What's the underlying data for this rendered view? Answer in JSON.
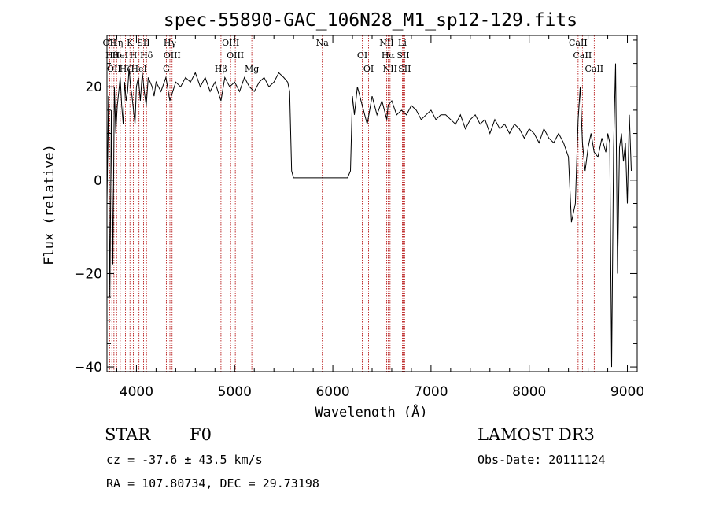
{
  "chart_data": {
    "type": "line",
    "title": "spec-55890-GAC_106N28_M1_sp12-129.fits",
    "xlabel": "Wavelength (Å)",
    "ylabel": "Flux (relative)",
    "xlim": [
      3700,
      9100
    ],
    "ylim": [
      -41,
      31
    ],
    "xticks": [
      4000,
      5000,
      6000,
      7000,
      8000,
      9000
    ],
    "yticks": [
      -40,
      -20,
      0,
      20
    ],
    "x": [
      3700,
      3715,
      3730,
      3745,
      3760,
      3775,
      3790,
      3805,
      3820,
      3835,
      3850,
      3865,
      3880,
      3895,
      3910,
      3925,
      3940,
      3955,
      3970,
      3985,
      4000,
      4020,
      4040,
      4060,
      4080,
      4100,
      4120,
      4140,
      4160,
      4180,
      4200,
      4250,
      4300,
      4340,
      4400,
      4450,
      4500,
      4550,
      4600,
      4650,
      4700,
      4750,
      4800,
      4861,
      4900,
      4950,
      5000,
      5050,
      5100,
      5150,
      5200,
      5250,
      5300,
      5350,
      5400,
      5450,
      5500,
      5540,
      5560,
      5580,
      5600,
      6150,
      6180,
      6200,
      6220,
      6250,
      6300,
      6350,
      6400,
      6450,
      6500,
      6550,
      6563,
      6600,
      6650,
      6700,
      6750,
      6800,
      6850,
      6900,
      6950,
      7000,
      7050,
      7100,
      7150,
      7200,
      7250,
      7300,
      7350,
      7400,
      7450,
      7500,
      7550,
      7600,
      7650,
      7700,
      7750,
      7800,
      7850,
      7900,
      7950,
      8000,
      8050,
      8100,
      8150,
      8200,
      8250,
      8300,
      8350,
      8400,
      8430,
      8470,
      8498,
      8520,
      8542,
      8570,
      8600,
      8630,
      8662,
      8700,
      8740,
      8780,
      8800,
      8820,
      8840,
      8860,
      8880,
      8900,
      8920,
      8940,
      8960,
      8980,
      9000,
      9020,
      9040
    ],
    "y": [
      -5,
      18,
      -25,
      15,
      -18,
      20,
      10,
      16,
      19,
      22,
      16,
      12,
      21,
      17,
      19,
      24,
      20,
      18,
      15,
      12,
      20,
      22,
      17,
      23,
      19,
      16,
      22,
      21,
      20,
      18,
      21,
      19,
      22,
      17,
      21,
      20,
      22,
      21,
      23,
      20,
      22,
      19,
      21,
      17,
      22,
      20,
      21,
      19,
      22,
      20,
      19,
      21,
      22,
      20,
      21,
      23,
      22,
      21,
      19,
      2,
      0.5,
      0.5,
      2,
      18,
      14,
      20,
      16,
      12,
      18,
      14,
      17,
      13,
      16,
      17,
      14,
      15,
      14,
      16,
      15,
      13,
      14,
      15,
      13,
      14,
      14,
      13,
      12,
      14,
      11,
      13,
      14,
      12,
      13,
      10,
      13,
      11,
      12,
      10,
      12,
      11,
      9,
      11,
      10,
      8,
      11,
      9,
      8,
      10,
      8,
      5,
      -9,
      -5,
      13,
      20,
      8,
      2,
      7,
      10,
      6,
      5,
      9,
      6,
      10,
      8,
      -40,
      7,
      25,
      -20,
      7,
      10,
      4,
      8,
      -5,
      14,
      2
    ],
    "line_marks": [
      {
        "wl": 3727,
        "label": "OII"
      },
      {
        "wl": 3750,
        "label": "Hθ"
      },
      {
        "wl": 3771,
        "label": "OII"
      },
      {
        "wl": 3798,
        "label": "Hη"
      },
      {
        "wl": 3835,
        "label": "HeI"
      },
      {
        "wl": 3889,
        "label": "Hζ"
      },
      {
        "wl": 3934,
        "label": "K"
      },
      {
        "wl": 3969,
        "label": "H"
      },
      {
        "wl": 4026,
        "label": "HeI"
      },
      {
        "wl": 4072,
        "label": "SII"
      },
      {
        "wl": 4102,
        "label": "Hδ"
      },
      {
        "wl": 4304,
        "label": "G"
      },
      {
        "wl": 4341,
        "label": "Hγ"
      },
      {
        "wl": 4363,
        "label": "OIII"
      },
      {
        "wl": 4861,
        "label": "Hβ"
      },
      {
        "wl": 4959,
        "label": "OIII"
      },
      {
        "wl": 5007,
        "label": "OIII"
      },
      {
        "wl": 5175,
        "label": "Mg"
      },
      {
        "wl": 5893,
        "label": "Na"
      },
      {
        "wl": 6300,
        "label": "OI"
      },
      {
        "wl": 6364,
        "label": "OI"
      },
      {
        "wl": 6548,
        "label": "NII"
      },
      {
        "wl": 6563,
        "label": "Hα"
      },
      {
        "wl": 6583,
        "label": "NII"
      },
      {
        "wl": 6708,
        "label": "Li"
      },
      {
        "wl": 6716,
        "label": "SII"
      },
      {
        "wl": 6731,
        "label": "SII"
      },
      {
        "wl": 8498,
        "label": "CaII"
      },
      {
        "wl": 8542,
        "label": "CaII"
      },
      {
        "wl": 8662,
        "label": "CaII"
      }
    ]
  },
  "info": {
    "class": "STAR",
    "subclass": "F0",
    "survey": "LAMOST DR3",
    "cz": "cz = -37.6 ± 43.5 km/s",
    "obs_date": "Obs-Date: 20111124",
    "radec": "RA = 107.80734, DEC =  29.73198"
  }
}
